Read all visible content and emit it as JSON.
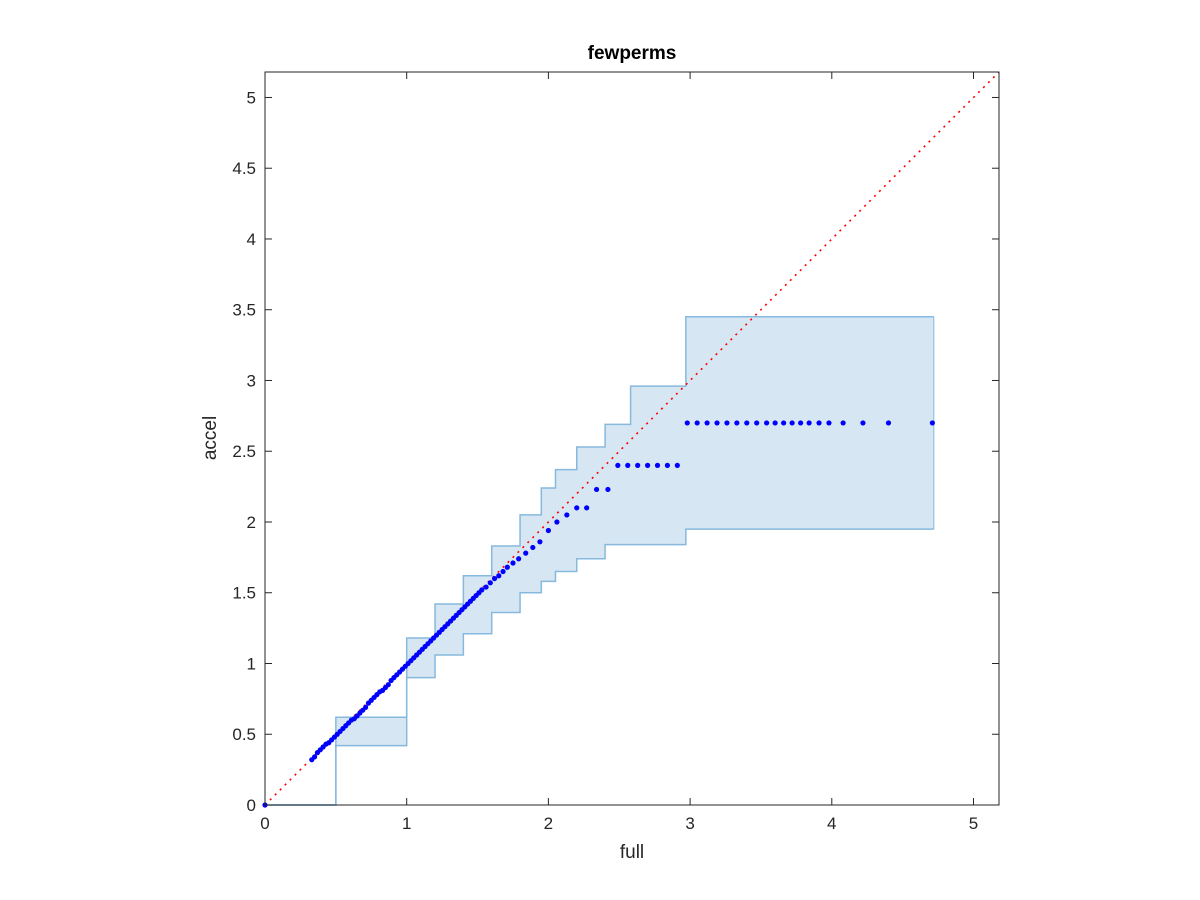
{
  "chart_data": {
    "type": "scatter",
    "title": "fewperms",
    "xlabel": "full",
    "ylabel": "accel",
    "xlim": [
      0,
      5.18
    ],
    "ylim": [
      0,
      5.18
    ],
    "xticks": [
      0,
      1,
      2,
      3,
      4,
      5
    ],
    "yticks": [
      0,
      0.5,
      1,
      1.5,
      2,
      2.5,
      3,
      3.5,
      4,
      4.5,
      5
    ],
    "xtick_labels": [
      "0",
      "1",
      "2",
      "3",
      "4",
      "5"
    ],
    "ytick_labels": [
      "0",
      "0.5",
      "1",
      "1.5",
      "2",
      "2.5",
      "3",
      "3.5",
      "4",
      "4.5",
      "5"
    ],
    "grid": false,
    "box": true,
    "colors": {
      "points": "#0000ff",
      "reference_line": "#ff0000",
      "band_fill": "#d6e6f3",
      "band_edge": "#86b9dd",
      "axes": "#262626"
    },
    "reference_line": {
      "style": "dotted",
      "x": [
        0,
        5.18
      ],
      "y": [
        0,
        5.18
      ]
    },
    "confidence_band": {
      "x": [
        0,
        0.5,
        1.0,
        1.2,
        1.4,
        1.6,
        1.8,
        1.95,
        2.05,
        2.2,
        2.4,
        2.58,
        2.97,
        4.72
      ],
      "upper": [
        0,
        0.62,
        1.18,
        1.42,
        1.62,
        1.83,
        2.05,
        2.24,
        2.37,
        2.53,
        2.69,
        2.96,
        3.45,
        3.45
      ],
      "lower": [
        0,
        0.42,
        0.9,
        1.06,
        1.21,
        1.36,
        1.5,
        1.58,
        1.65,
        1.74,
        1.84,
        1.84,
        1.95,
        1.95
      ]
    },
    "series": [
      {
        "x": [
          0,
          0.33,
          0.35,
          0.37,
          0.39,
          0.41,
          0.43,
          0.45,
          0.47,
          0.49,
          0.51,
          0.53,
          0.55,
          0.57,
          0.59,
          0.61,
          0.63,
          0.65,
          0.67,
          0.69,
          0.71,
          0.73,
          0.75,
          0.77,
          0.79,
          0.81,
          0.83,
          0.85,
          0.87,
          0.89,
          0.91,
          0.93,
          0.95,
          0.97,
          0.99,
          1.01,
          1.03,
          1.05,
          1.07,
          1.09,
          1.11,
          1.13,
          1.15,
          1.17,
          1.19,
          1.21,
          1.23,
          1.25,
          1.27,
          1.29,
          1.31,
          1.33,
          1.35,
          1.37,
          1.39,
          1.41,
          1.43,
          1.45,
          1.47,
          1.49,
          1.51,
          1.53,
          1.56,
          1.59,
          1.62,
          1.65,
          1.68,
          1.71,
          1.75,
          1.79,
          1.84,
          1.89,
          1.94,
          2.0,
          2.06,
          2.13,
          2.2,
          2.27,
          2.34,
          2.42,
          2.49,
          2.56,
          2.63,
          2.7,
          2.77,
          2.84,
          2.91,
          2.98,
          3.05,
          3.12,
          3.19,
          3.26,
          3.33,
          3.4,
          3.47,
          3.54,
          3.6,
          3.66,
          3.72,
          3.78,
          3.84,
          3.91,
          3.98,
          4.08,
          4.22,
          4.4,
          4.71
        ],
        "y": [
          0,
          0.32,
          0.34,
          0.37,
          0.39,
          0.41,
          0.43,
          0.44,
          0.46,
          0.48,
          0.5,
          0.52,
          0.54,
          0.56,
          0.58,
          0.6,
          0.61,
          0.63,
          0.65,
          0.67,
          0.69,
          0.72,
          0.74,
          0.76,
          0.78,
          0.8,
          0.81,
          0.83,
          0.85,
          0.88,
          0.9,
          0.92,
          0.94,
          0.96,
          0.98,
          1.0,
          1.02,
          1.04,
          1.06,
          1.08,
          1.1,
          1.12,
          1.14,
          1.16,
          1.18,
          1.2,
          1.22,
          1.24,
          1.26,
          1.28,
          1.3,
          1.32,
          1.34,
          1.36,
          1.38,
          1.4,
          1.42,
          1.44,
          1.46,
          1.48,
          1.5,
          1.52,
          1.54,
          1.57,
          1.6,
          1.62,
          1.65,
          1.68,
          1.71,
          1.74,
          1.78,
          1.82,
          1.86,
          1.94,
          2.0,
          2.05,
          2.1,
          2.1,
          2.23,
          2.23,
          2.4,
          2.4,
          2.4,
          2.4,
          2.4,
          2.4,
          2.4,
          2.7,
          2.7,
          2.7,
          2.7,
          2.7,
          2.7,
          2.7,
          2.7,
          2.7,
          2.7,
          2.7,
          2.7,
          2.7,
          2.7,
          2.7,
          2.7,
          2.7,
          2.7,
          2.7,
          2.7
        ]
      }
    ]
  }
}
